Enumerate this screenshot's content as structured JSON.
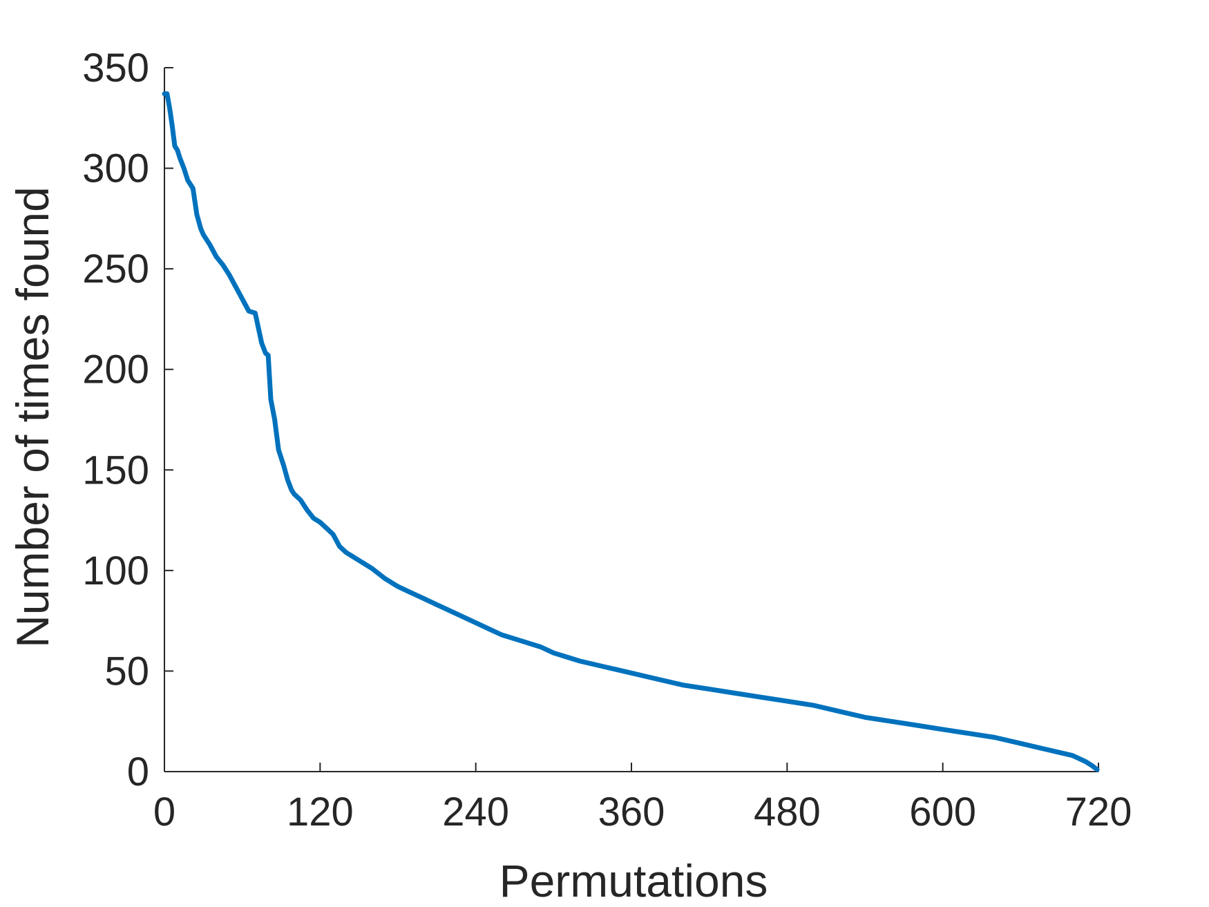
{
  "chart_data": {
    "type": "line",
    "title": "",
    "xlabel": "Permutations",
    "ylabel": "Number of times found",
    "xlim": [
      0,
      720
    ],
    "ylim": [
      0,
      350
    ],
    "xticks": [
      0,
      120,
      240,
      360,
      480,
      600,
      720
    ],
    "yticks": [
      0,
      50,
      100,
      150,
      200,
      250,
      300,
      350
    ],
    "grid": false,
    "legend": "none",
    "colors": {
      "line": "#0072BD",
      "axis": "#262626",
      "text": "#262626"
    },
    "series": [
      {
        "x": [
          0,
          2,
          4,
          6,
          8,
          10,
          12,
          15,
          18,
          22,
          25,
          28,
          30,
          35,
          40,
          45,
          50,
          55,
          60,
          65,
          70,
          75,
          78,
          80,
          82,
          85,
          88,
          90,
          92,
          95,
          98,
          100,
          105,
          110,
          115,
          120,
          125,
          130,
          135,
          140,
          145,
          150,
          160,
          170,
          180,
          190,
          200,
          210,
          220,
          230,
          240,
          250,
          260,
          270,
          280,
          290,
          300,
          310,
          320,
          340,
          360,
          380,
          400,
          420,
          440,
          460,
          480,
          500,
          520,
          540,
          560,
          580,
          600,
          620,
          640,
          660,
          680,
          700,
          710,
          715,
          719
        ],
        "y": [
          337,
          337,
          330,
          321,
          311,
          309,
          305,
          300,
          294,
          290,
          277,
          270,
          267,
          262,
          256,
          252,
          247,
          241,
          235,
          229,
          228,
          213,
          208,
          207,
          185,
          175,
          160,
          156,
          152,
          145,
          140,
          138,
          135,
          130,
          126,
          124,
          121,
          118,
          112,
          109,
          107,
          105,
          101,
          96,
          92,
          89,
          86,
          83,
          80,
          77,
          74,
          71,
          68,
          66,
          64,
          62,
          59,
          57,
          55,
          52,
          49,
          46,
          43,
          41,
          39,
          37,
          35,
          33,
          30,
          27,
          25,
          23,
          21,
          19,
          17,
          14,
          11,
          8,
          5,
          3,
          1
        ]
      }
    ]
  }
}
